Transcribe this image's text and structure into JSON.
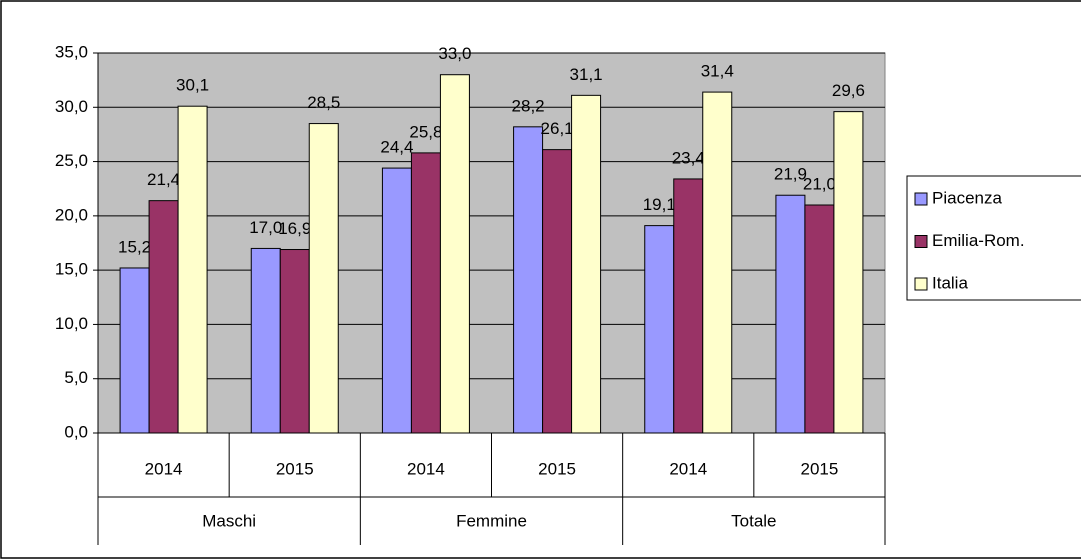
{
  "chart_data": {
    "type": "bar",
    "categories": [
      "2014",
      "2015",
      "2014",
      "2015",
      "2014",
      "2015"
    ],
    "category_groups": [
      "Maschi",
      "Femmine",
      "Totale"
    ],
    "series": [
      {
        "name": "Piacenza",
        "color": "#9999ff",
        "values": [
          15.2,
          17.0,
          24.4,
          28.2,
          19.1,
          21.9
        ],
        "value_labels": [
          "15,2",
          "17,0",
          "24,4",
          "28,2",
          "19,1",
          "21,9"
        ]
      },
      {
        "name": "Emilia-Rom.",
        "color": "#993366",
        "values": [
          21.4,
          16.9,
          25.8,
          26.1,
          23.4,
          21.0
        ],
        "value_labels": [
          "21,4",
          "16,9",
          "25,8",
          "26,1",
          "23,4",
          "21,0"
        ]
      },
      {
        "name": "Italia",
        "color": "#ffffcc",
        "values": [
          30.1,
          28.5,
          33.0,
          31.1,
          31.4,
          29.6
        ],
        "value_labels": [
          "30,1",
          "28,5",
          "33,0",
          "31,1",
          "31,4",
          "29,6"
        ]
      }
    ],
    "ylim": [
      0,
      35
    ],
    "yticks": [
      {
        "value": 0,
        "label": "0,0"
      },
      {
        "value": 5,
        "label": "5,0"
      },
      {
        "value": 10,
        "label": "10,0"
      },
      {
        "value": 15,
        "label": "15,0"
      },
      {
        "value": 20,
        "label": "20,0"
      },
      {
        "value": 25,
        "label": "25,0"
      },
      {
        "value": 30,
        "label": "30,0"
      },
      {
        "value": 35,
        "label": "35,0"
      }
    ],
    "grid": true,
    "plot_background": "#c0c0c0",
    "legend": "right"
  }
}
